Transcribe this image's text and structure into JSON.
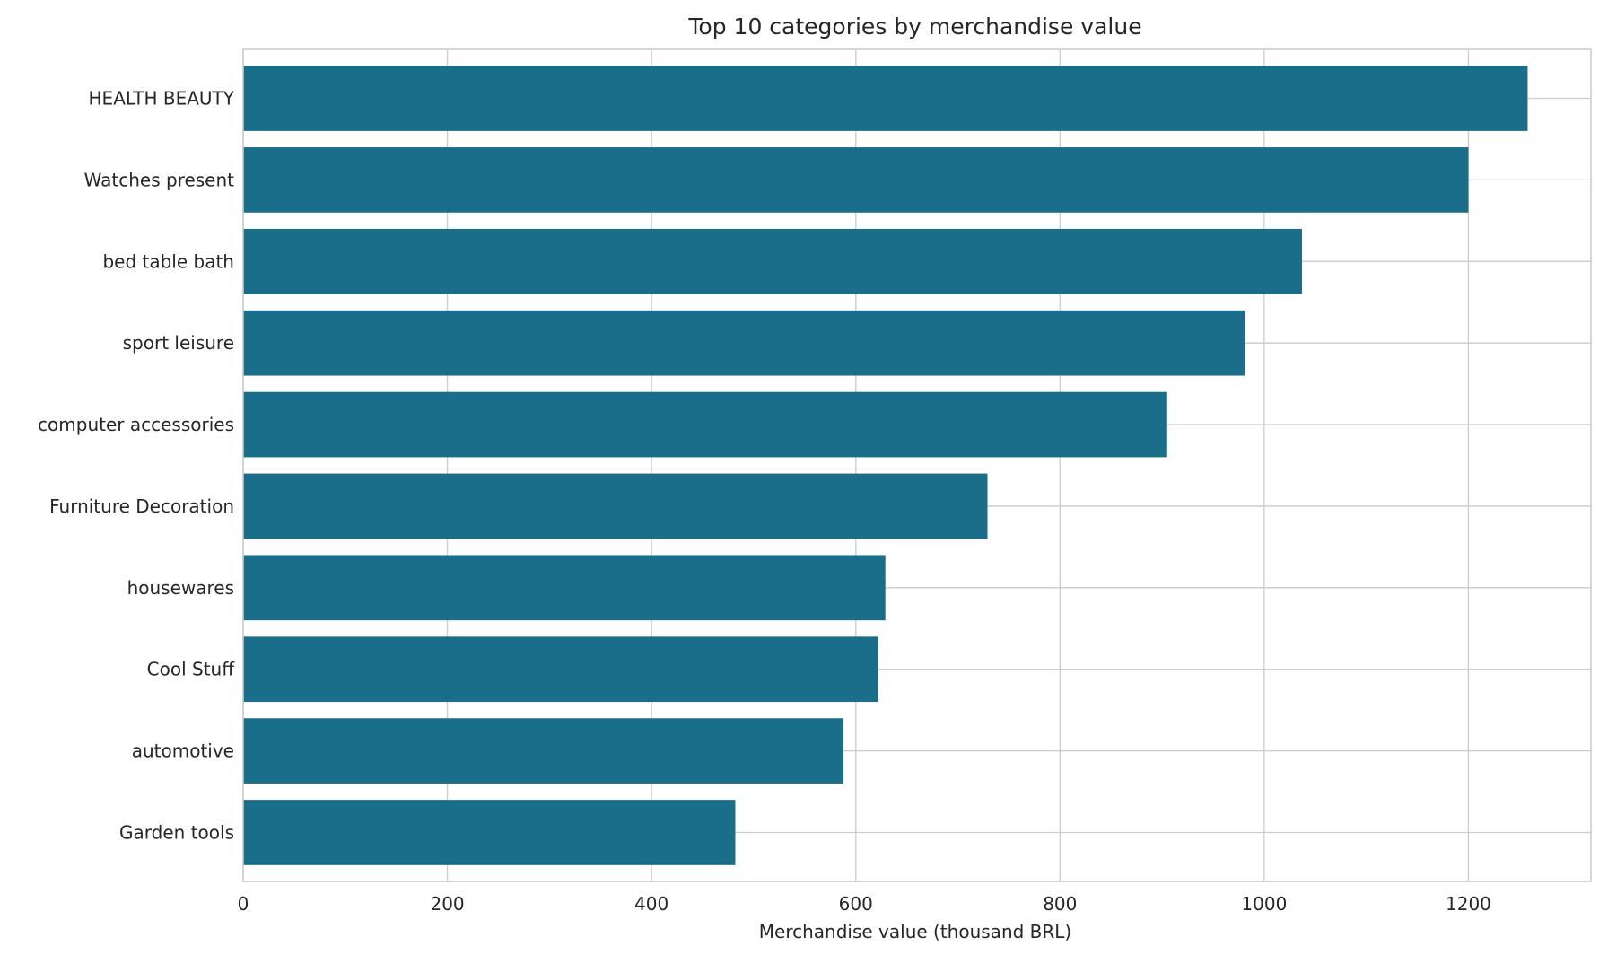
{
  "chart_data": {
    "type": "bar",
    "orientation": "horizontal",
    "title": "Top 10 categories by merchandise value",
    "xlabel": "Merchandise value (thousand BRL)",
    "ylabel": "",
    "categories": [
      "HEALTH BEAUTY",
      "Watches present",
      "bed table bath",
      "sport leisure",
      "computer accessories",
      "Furniture Decoration",
      "housewares",
      "Cool Stuff",
      "automotive",
      "Garden tools"
    ],
    "values": [
      1258,
      1200,
      1037,
      981,
      905,
      729,
      629,
      622,
      588,
      482
    ],
    "xlim": [
      0,
      1320
    ],
    "xticks": [
      0,
      200,
      400,
      600,
      800,
      1000,
      1200
    ],
    "xtick_labels": [
      "0",
      "200",
      "400",
      "600",
      "800",
      "1000",
      "1200"
    ],
    "grid": true,
    "bar_color": "#1a6e89",
    "grid_color": "#cccccc"
  }
}
